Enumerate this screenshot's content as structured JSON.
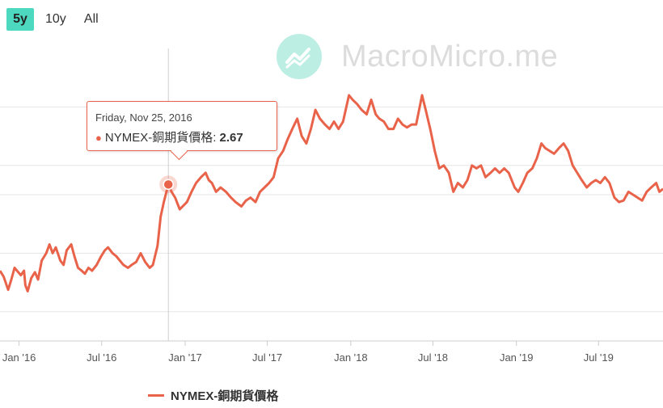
{
  "range_selector": {
    "buttons": [
      {
        "label": "5y",
        "active": true
      },
      {
        "label": "10y",
        "active": false
      },
      {
        "label": "All",
        "active": false
      }
    ]
  },
  "watermark": {
    "text": "MacroMicro.me"
  },
  "tooltip": {
    "date": "Friday, Nov 25, 2016",
    "series": "NYMEX-銅期貨價格",
    "value_text": "2.67"
  },
  "legend": {
    "label": "NYMEX-銅期貨價格"
  },
  "colors": {
    "series": "#e8634a",
    "accent": "#4dd9c0",
    "grid": "#e6e6e6"
  },
  "chart_data": {
    "type": "line",
    "title": "",
    "xlabel": "",
    "ylabel": "",
    "xlim": [
      "2015-11-20",
      "2019-11-20"
    ],
    "ylim": [
      1.6,
      3.6
    ],
    "grid": true,
    "legend_position": "bottom-left",
    "x_ticks": [
      "Jan '16",
      "Jul '16",
      "Jan '17",
      "Jul '17",
      "Jan '18",
      "Jul '18",
      "Jan '19",
      "Jul '19"
    ],
    "series": [
      {
        "name": "NYMEX-銅期貨價格",
        "points": [
          [
            "2015-11-20",
            2.08
          ],
          [
            "2015-11-28",
            2.04
          ],
          [
            "2015-12-08",
            1.95
          ],
          [
            "2015-12-15",
            2.02
          ],
          [
            "2015-12-22",
            2.1
          ],
          [
            "2016-01-05",
            2.05
          ],
          [
            "2016-01-12",
            2.08
          ],
          [
            "2016-01-15",
            1.98
          ],
          [
            "2016-01-20",
            1.94
          ],
          [
            "2016-01-28",
            2.03
          ],
          [
            "2016-02-05",
            2.07
          ],
          [
            "2016-02-12",
            2.02
          ],
          [
            "2016-02-20",
            2.15
          ],
          [
            "2016-03-01",
            2.2
          ],
          [
            "2016-03-08",
            2.26
          ],
          [
            "2016-03-15",
            2.2
          ],
          [
            "2016-03-22",
            2.24
          ],
          [
            "2016-04-01",
            2.15
          ],
          [
            "2016-04-08",
            2.12
          ],
          [
            "2016-04-15",
            2.22
          ],
          [
            "2016-04-25",
            2.26
          ],
          [
            "2016-05-02",
            2.18
          ],
          [
            "2016-05-10",
            2.1
          ],
          [
            "2016-05-18",
            2.08
          ],
          [
            "2016-05-25",
            2.06
          ],
          [
            "2016-06-02",
            2.1
          ],
          [
            "2016-06-10",
            2.08
          ],
          [
            "2016-06-20",
            2.12
          ],
          [
            "2016-06-30",
            2.18
          ],
          [
            "2016-07-08",
            2.22
          ],
          [
            "2016-07-15",
            2.24
          ],
          [
            "2016-07-25",
            2.2
          ],
          [
            "2016-08-02",
            2.18
          ],
          [
            "2016-08-10",
            2.15
          ],
          [
            "2016-08-18",
            2.12
          ],
          [
            "2016-08-28",
            2.1
          ],
          [
            "2016-09-05",
            2.12
          ],
          [
            "2016-09-15",
            2.14
          ],
          [
            "2016-09-25",
            2.2
          ],
          [
            "2016-10-05",
            2.14
          ],
          [
            "2016-10-15",
            2.1
          ],
          [
            "2016-10-22",
            2.12
          ],
          [
            "2016-11-01",
            2.25
          ],
          [
            "2016-11-08",
            2.45
          ],
          [
            "2016-11-15",
            2.55
          ],
          [
            "2016-11-25",
            2.67
          ],
          [
            "2016-12-02",
            2.62
          ],
          [
            "2016-12-10",
            2.58
          ],
          [
            "2016-12-20",
            2.5
          ],
          [
            "2017-01-05",
            2.55
          ],
          [
            "2017-01-15",
            2.62
          ],
          [
            "2017-01-25",
            2.68
          ],
          [
            "2017-02-05",
            2.72
          ],
          [
            "2017-02-15",
            2.75
          ],
          [
            "2017-02-22",
            2.7
          ],
          [
            "2017-03-01",
            2.68
          ],
          [
            "2017-03-10",
            2.62
          ],
          [
            "2017-03-20",
            2.65
          ],
          [
            "2017-04-01",
            2.62
          ],
          [
            "2017-04-12",
            2.58
          ],
          [
            "2017-04-22",
            2.55
          ],
          [
            "2017-05-05",
            2.52
          ],
          [
            "2017-05-15",
            2.56
          ],
          [
            "2017-05-25",
            2.58
          ],
          [
            "2017-06-05",
            2.55
          ],
          [
            "2017-06-15",
            2.62
          ],
          [
            "2017-06-25",
            2.65
          ],
          [
            "2017-07-05",
            2.68
          ],
          [
            "2017-07-15",
            2.72
          ],
          [
            "2017-07-25",
            2.85
          ],
          [
            "2017-08-05",
            2.9
          ],
          [
            "2017-08-15",
            2.98
          ],
          [
            "2017-08-25",
            3.05
          ],
          [
            "2017-09-05",
            3.12
          ],
          [
            "2017-09-15",
            3.0
          ],
          [
            "2017-09-25",
            2.95
          ],
          [
            "2017-10-05",
            3.05
          ],
          [
            "2017-10-15",
            3.18
          ],
          [
            "2017-10-25",
            3.12
          ],
          [
            "2017-11-05",
            3.08
          ],
          [
            "2017-11-15",
            3.05
          ],
          [
            "2017-11-25",
            3.1
          ],
          [
            "2017-12-05",
            3.05
          ],
          [
            "2017-12-15",
            3.1
          ],
          [
            "2017-12-28",
            3.28
          ],
          [
            "2018-01-05",
            3.25
          ],
          [
            "2018-01-15",
            3.22
          ],
          [
            "2018-01-25",
            3.18
          ],
          [
            "2018-02-05",
            3.15
          ],
          [
            "2018-02-15",
            3.25
          ],
          [
            "2018-02-25",
            3.15
          ],
          [
            "2018-03-05",
            3.12
          ],
          [
            "2018-03-15",
            3.1
          ],
          [
            "2018-03-25",
            3.05
          ],
          [
            "2018-04-05",
            3.05
          ],
          [
            "2018-04-15",
            3.12
          ],
          [
            "2018-04-25",
            3.08
          ],
          [
            "2018-05-05",
            3.06
          ],
          [
            "2018-05-15",
            3.08
          ],
          [
            "2018-05-25",
            3.08
          ],
          [
            "2018-06-07",
            3.28
          ],
          [
            "2018-06-15",
            3.18
          ],
          [
            "2018-06-25",
            3.05
          ],
          [
            "2018-07-05",
            2.9
          ],
          [
            "2018-07-15",
            2.78
          ],
          [
            "2018-07-25",
            2.8
          ],
          [
            "2018-08-05",
            2.75
          ],
          [
            "2018-08-15",
            2.62
          ],
          [
            "2018-08-25",
            2.68
          ],
          [
            "2018-09-05",
            2.65
          ],
          [
            "2018-09-15",
            2.7
          ],
          [
            "2018-09-25",
            2.8
          ],
          [
            "2018-10-05",
            2.78
          ],
          [
            "2018-10-15",
            2.8
          ],
          [
            "2018-10-25",
            2.72
          ],
          [
            "2018-11-05",
            2.75
          ],
          [
            "2018-11-15",
            2.78
          ],
          [
            "2018-11-25",
            2.75
          ],
          [
            "2018-12-05",
            2.78
          ],
          [
            "2018-12-15",
            2.75
          ],
          [
            "2018-12-28",
            2.65
          ],
          [
            "2019-01-05",
            2.62
          ],
          [
            "2019-01-15",
            2.68
          ],
          [
            "2019-01-25",
            2.75
          ],
          [
            "2019-02-05",
            2.78
          ],
          [
            "2019-02-15",
            2.85
          ],
          [
            "2019-02-25",
            2.95
          ],
          [
            "2019-03-05",
            2.92
          ],
          [
            "2019-03-15",
            2.9
          ],
          [
            "2019-03-25",
            2.88
          ],
          [
            "2019-04-05",
            2.92
          ],
          [
            "2019-04-15",
            2.95
          ],
          [
            "2019-04-25",
            2.9
          ],
          [
            "2019-05-05",
            2.8
          ],
          [
            "2019-05-15",
            2.75
          ],
          [
            "2019-05-25",
            2.7
          ],
          [
            "2019-06-05",
            2.65
          ],
          [
            "2019-06-15",
            2.68
          ],
          [
            "2019-06-25",
            2.7
          ],
          [
            "2019-07-05",
            2.68
          ],
          [
            "2019-07-15",
            2.72
          ],
          [
            "2019-07-25",
            2.68
          ],
          [
            "2019-08-05",
            2.58
          ],
          [
            "2019-08-15",
            2.55
          ],
          [
            "2019-08-25",
            2.56
          ],
          [
            "2019-09-05",
            2.62
          ],
          [
            "2019-09-15",
            2.6
          ],
          [
            "2019-09-25",
            2.58
          ],
          [
            "2019-10-05",
            2.56
          ],
          [
            "2019-10-15",
            2.62
          ],
          [
            "2019-10-25",
            2.65
          ],
          [
            "2019-11-05",
            2.68
          ],
          [
            "2019-11-12",
            2.62
          ],
          [
            "2019-11-20",
            2.64
          ]
        ]
      }
    ],
    "highlight_point": {
      "x": "2016-11-25",
      "y": 2.67
    }
  }
}
